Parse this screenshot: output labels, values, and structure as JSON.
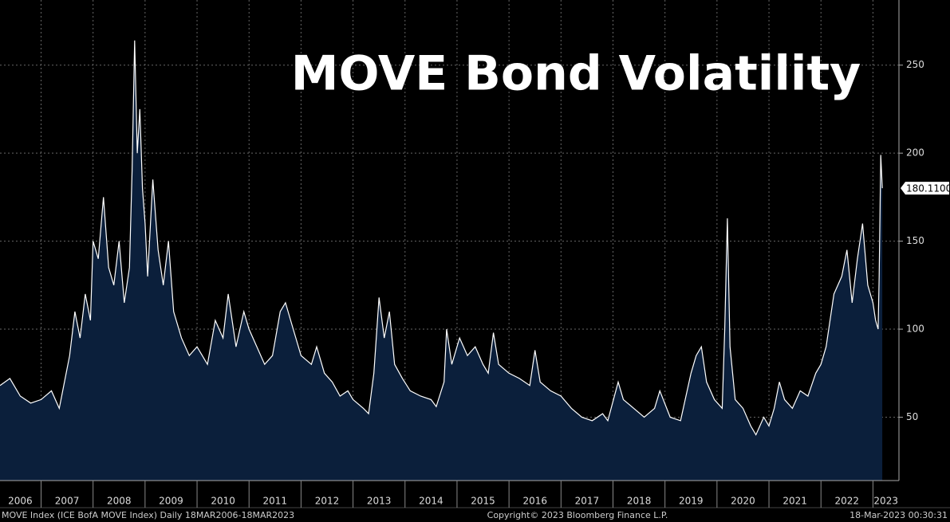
{
  "chart_data": {
    "type": "area",
    "title": "MOVE Bond Volatility",
    "footer_left": "MOVE Index (ICE BofA MOVE Index)  Daily 18MAR2006-18MAR2023",
    "footer_center": "Copyright© 2023 Bloomberg Finance L.P.",
    "footer_right": "18-Mar-2023 00:30:31",
    "x": [
      2006.21,
      2006.4,
      2006.6,
      2006.8,
      2007.0,
      2007.2,
      2007.35,
      2007.45,
      2007.55,
      2007.65,
      2007.75,
      2007.85,
      2007.95,
      2008.0,
      2008.1,
      2008.2,
      2008.3,
      2008.4,
      2008.5,
      2008.6,
      2008.7,
      2008.75,
      2008.8,
      2008.85,
      2008.9,
      2008.95,
      2009.0,
      2009.05,
      2009.15,
      2009.25,
      2009.35,
      2009.45,
      2009.55,
      2009.7,
      2009.85,
      2010.0,
      2010.2,
      2010.35,
      2010.5,
      2010.6,
      2010.75,
      2010.9,
      2011.0,
      2011.15,
      2011.3,
      2011.45,
      2011.6,
      2011.7,
      2011.85,
      2012.0,
      2012.2,
      2012.3,
      2012.45,
      2012.6,
      2012.75,
      2012.9,
      2013.0,
      2013.2,
      2013.3,
      2013.4,
      2013.5,
      2013.6,
      2013.7,
      2013.8,
      2013.95,
      2014.1,
      2014.3,
      2014.5,
      2014.6,
      2014.75,
      2014.8,
      2014.9,
      2015.05,
      2015.2,
      2015.35,
      2015.5,
      2015.6,
      2015.7,
      2015.8,
      2016.0,
      2016.2,
      2016.4,
      2016.5,
      2016.6,
      2016.8,
      2017.0,
      2017.2,
      2017.4,
      2017.6,
      2017.8,
      2017.9,
      2018.1,
      2018.2,
      2018.4,
      2018.6,
      2018.8,
      2018.9,
      2019.1,
      2019.3,
      2019.5,
      2019.6,
      2019.7,
      2019.8,
      2019.95,
      2020.1,
      2020.15,
      2020.2,
      2020.25,
      2020.35,
      2020.5,
      2020.65,
      2020.75,
      2020.9,
      2021.0,
      2021.1,
      2021.2,
      2021.3,
      2021.45,
      2021.6,
      2021.75,
      2021.9,
      2022.0,
      2022.1,
      2022.25,
      2022.4,
      2022.5,
      2022.6,
      2022.7,
      2022.8,
      2022.9,
      2023.0,
      2023.05,
      2023.1,
      2023.12,
      2023.15,
      2023.18
    ],
    "series": [
      {
        "name": "MOVE Index",
        "color": "#ffffff",
        "fill": "#0b1f3b",
        "values": [
          68,
          72,
          62,
          58,
          60,
          65,
          55,
          70,
          85,
          110,
          95,
          120,
          105,
          150,
          140,
          175,
          135,
          125,
          150,
          115,
          135,
          190,
          264,
          200,
          225,
          180,
          160,
          130,
          185,
          145,
          125,
          150,
          110,
          95,
          85,
          90,
          80,
          105,
          95,
          120,
          90,
          110,
          100,
          90,
          80,
          85,
          110,
          115,
          100,
          85,
          80,
          90,
          75,
          70,
          62,
          65,
          60,
          55,
          52,
          75,
          118,
          95,
          110,
          80,
          72,
          65,
          62,
          60,
          56,
          70,
          100,
          80,
          95,
          85,
          90,
          80,
          75,
          98,
          80,
          75,
          72,
          68,
          88,
          70,
          65,
          62,
          55,
          50,
          48,
          52,
          48,
          70,
          60,
          55,
          50,
          55,
          65,
          50,
          48,
          75,
          85,
          90,
          70,
          60,
          55,
          100,
          163,
          90,
          60,
          55,
          45,
          40,
          50,
          45,
          55,
          70,
          60,
          55,
          65,
          62,
          75,
          80,
          90,
          120,
          130,
          145,
          115,
          140,
          160,
          125,
          115,
          105,
          100,
          130,
          199,
          180.11
        ]
      }
    ],
    "last_value_label": "180.1100",
    "xlim": [
      2006.21,
      2023.5
    ],
    "xgrid": [
      2007,
      2008,
      2009,
      2010,
      2011,
      2012,
      2013,
      2014,
      2015,
      2016,
      2017,
      2018,
      2019,
      2020,
      2021,
      2022,
      2023
    ],
    "xticks": [
      {
        "value": 2006.6,
        "label": "2006"
      },
      {
        "value": 2007.5,
        "label": "2007"
      },
      {
        "value": 2008.5,
        "label": "2008"
      },
      {
        "value": 2009.5,
        "label": "2009"
      },
      {
        "value": 2010.5,
        "label": "2010"
      },
      {
        "value": 2011.5,
        "label": "2011"
      },
      {
        "value": 2012.5,
        "label": "2012"
      },
      {
        "value": 2013.5,
        "label": "2013"
      },
      {
        "value": 2014.5,
        "label": "2014"
      },
      {
        "value": 2015.5,
        "label": "2015"
      },
      {
        "value": 2016.5,
        "label": "2016"
      },
      {
        "value": 2017.5,
        "label": "2017"
      },
      {
        "value": 2018.5,
        "label": "2018"
      },
      {
        "value": 2019.5,
        "label": "2019"
      },
      {
        "value": 2020.5,
        "label": "2020"
      },
      {
        "value": 2021.5,
        "label": "2021"
      },
      {
        "value": 2022.5,
        "label": "2022"
      },
      {
        "value": 2023.25,
        "label": "2023"
      }
    ],
    "ylim": [
      14,
      287
    ],
    "yticks": [
      50,
      100,
      150,
      200,
      250
    ],
    "grid": true
  }
}
